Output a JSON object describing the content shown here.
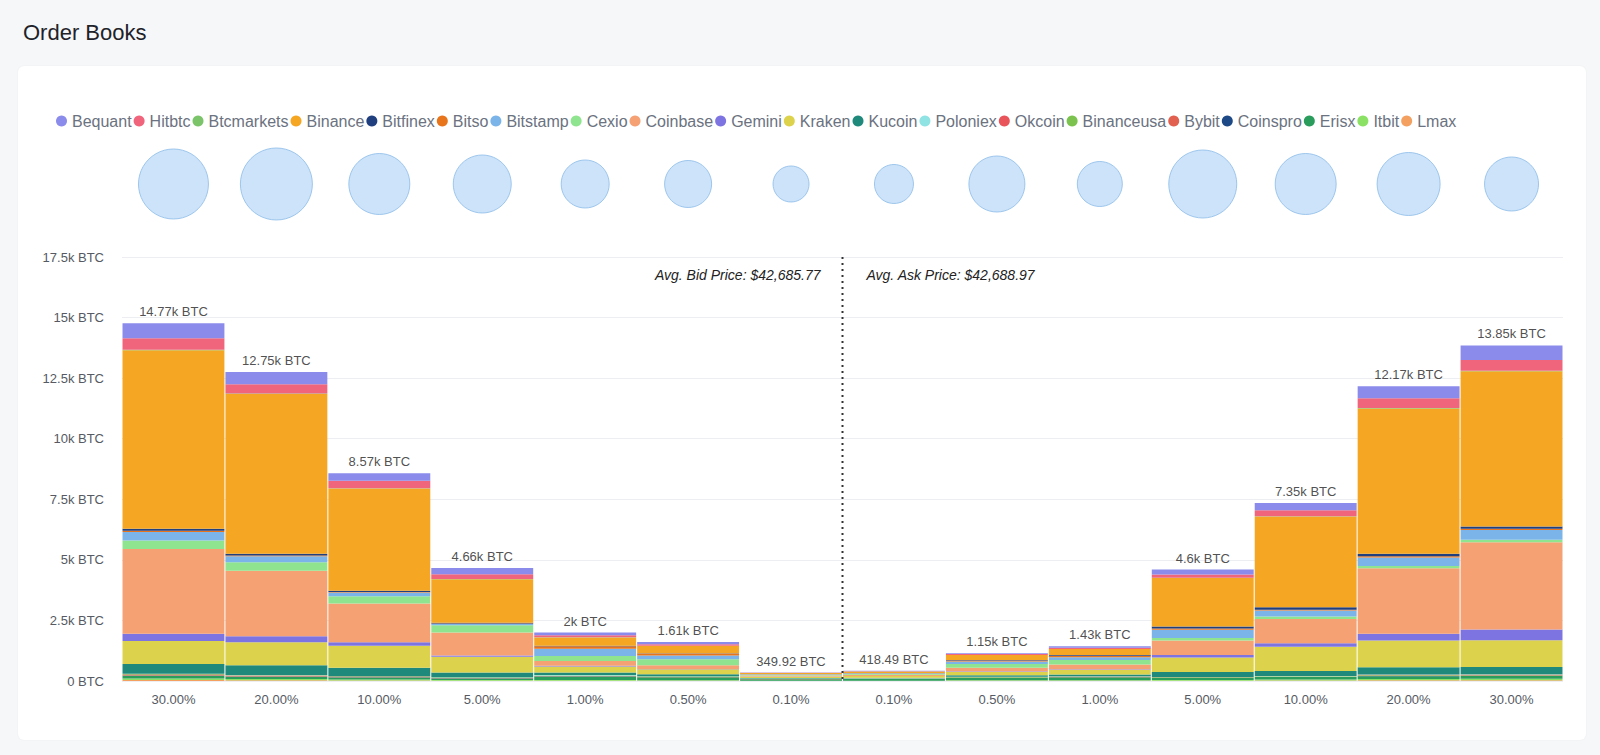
{
  "chart_data": {
    "type": "bar",
    "title": "Order Books",
    "categories": [
      "30.00%",
      "20.00%",
      "10.00%",
      "5.00%",
      "1.00%",
      "0.50%",
      "0.10%",
      "0.10%",
      "0.50%",
      "1.00%",
      "5.00%",
      "10.00%",
      "20.00%",
      "30.00%"
    ],
    "series": [
      {
        "name": "Bequant",
        "color": "#8b8beb",
        "values": [
          620,
          500,
          310,
          250,
          110,
          90,
          10.92,
          12.49,
          40,
          60,
          200,
          300,
          500,
          600
        ]
      },
      {
        "name": "Hitbtc",
        "color": "#f0647c",
        "values": [
          480,
          380,
          300,
          200,
          80,
          60,
          8,
          10,
          35,
          45,
          140,
          250,
          400,
          450
        ]
      },
      {
        "name": "Btcmarkets",
        "color": "#7cc46a",
        "values": [
          20,
          20,
          10,
          10,
          10,
          10,
          2,
          2,
          5,
          5,
          10,
          10,
          20,
          20
        ]
      },
      {
        "name": "Binance",
        "color": "#f5a623",
        "values": [
          7370,
          6600,
          4230,
          1800,
          350,
          300,
          40,
          60,
          200,
          250,
          2000,
          3750,
          6000,
          6400
        ]
      },
      {
        "name": "Bitfinex",
        "color": "#1f3f7f",
        "values": [
          80,
          70,
          50,
          30,
          20,
          20,
          5,
          5,
          20,
          25,
          80,
          100,
          100,
          100
        ]
      },
      {
        "name": "Bitso",
        "color": "#e8751c",
        "values": [
          50,
          30,
          20,
          20,
          100,
          80,
          10,
          10,
          50,
          60,
          50,
          30,
          50,
          50
        ]
      },
      {
        "name": "Bitstamp",
        "color": "#7ab4e8",
        "values": [
          350,
          250,
          150,
          50,
          300,
          150,
          20,
          25,
          100,
          120,
          350,
          250,
          350,
          400
        ]
      },
      {
        "name": "Cexio",
        "color": "#8fe58f",
        "values": [
          350,
          350,
          300,
          300,
          200,
          250,
          30,
          35,
          150,
          180,
          100,
          100,
          100,
          100
        ]
      },
      {
        "name": "Coinbase",
        "color": "#f5a173",
        "values": [
          3500,
          2700,
          1600,
          950,
          200,
          150,
          40,
          50,
          150,
          200,
          600,
          1000,
          2700,
          3600
        ]
      },
      {
        "name": "Gemini",
        "color": "#7d74e2",
        "values": [
          300,
          250,
          150,
          50,
          30,
          20,
          5,
          5,
          15,
          20,
          100,
          150,
          280,
          450
        ]
      },
      {
        "name": "Kraken",
        "color": "#ddd24c",
        "values": [
          950,
          950,
          900,
          650,
          250,
          200,
          60,
          70,
          150,
          200,
          600,
          1000,
          1100,
          1100
        ]
      },
      {
        "name": "Kucoin",
        "color": "#1f8a7c",
        "values": [
          400,
          400,
          350,
          200,
          100,
          80,
          20,
          25,
          60,
          70,
          200,
          200,
          300,
          300
        ]
      },
      {
        "name": "Poloniex",
        "color": "#8fe3e3",
        "values": [
          10,
          10,
          5,
          5,
          20,
          10,
          5,
          5,
          10,
          10,
          5,
          10,
          10,
          10
        ]
      },
      {
        "name": "Okcoin",
        "color": "#e9545a",
        "values": [
          10,
          10,
          5,
          5,
          5,
          5,
          2,
          2,
          5,
          5,
          5,
          5,
          10,
          10
        ]
      },
      {
        "name": "Binanceusa",
        "color": "#7bc24f",
        "values": [
          30,
          20,
          20,
          15,
          20,
          20,
          10,
          10,
          15,
          15,
          15,
          15,
          20,
          20
        ]
      },
      {
        "name": "Bybit",
        "color": "#e2604f",
        "values": [
          20,
          20,
          20,
          15,
          10,
          10,
          5,
          5,
          10,
          10,
          15,
          15,
          20,
          20
        ]
      },
      {
        "name": "Coinspro",
        "color": "#1d4a86",
        "values": [
          10,
          10,
          10,
          5,
          5,
          5,
          2,
          2,
          5,
          5,
          5,
          5,
          10,
          10
        ]
      },
      {
        "name": "Erisx",
        "color": "#2a9c5c",
        "values": [
          120,
          100,
          80,
          60,
          150,
          120,
          60,
          70,
          100,
          120,
          80,
          100,
          120,
          120
        ]
      },
      {
        "name": "Itbit",
        "color": "#8ae163",
        "values": [
          60,
          50,
          40,
          30,
          30,
          20,
          10,
          10,
          20,
          20,
          30,
          40,
          50,
          60
        ]
      },
      {
        "name": "Lmax",
        "color": "#f4a061",
        "values": [
          40,
          30,
          20,
          15,
          10,
          10,
          5,
          5,
          10,
          10,
          15,
          20,
          30,
          30
        ]
      }
    ],
    "totals": [
      14770,
      12750,
      8570,
      4660,
      2000,
      1610,
      349.92,
      418.49,
      1150,
      1430,
      4600,
      7350,
      12170,
      13850
    ],
    "total_labels": [
      "14.77k BTC",
      "12.75k BTC",
      "8.57k BTC",
      "4.66k BTC",
      "2k BTC",
      "1.61k BTC",
      "349.92 BTC",
      "418.49 BTC",
      "1.15k BTC",
      "1.43k BTC",
      "4.6k BTC",
      "7.35k BTC",
      "12.17k BTC",
      "13.85k BTC"
    ],
    "bubble_sizes": [
      70,
      72,
      61,
      58,
      48,
      47,
      36,
      39,
      56,
      45,
      68,
      61,
      63,
      54
    ],
    "annotations": [
      "Avg. Bid Price: $42,685.77",
      "Avg. Ask Price: $42,688.97"
    ],
    "ylim": [
      0,
      17500
    ],
    "yticks": [
      {
        "value": 0,
        "label": "0 BTC"
      },
      {
        "value": 2500,
        "label": "2.5k BTC"
      },
      {
        "value": 5000,
        "label": "5k BTC"
      },
      {
        "value": 7500,
        "label": "7.5k BTC"
      },
      {
        "value": 10000,
        "label": "10k BTC"
      },
      {
        "value": 12500,
        "label": "12.5k BTC"
      },
      {
        "value": 15000,
        "label": "15k BTC"
      },
      {
        "value": 17500,
        "label": "17.5k BTC"
      }
    ],
    "stacked": true,
    "grid": true,
    "legend": "top-left"
  }
}
